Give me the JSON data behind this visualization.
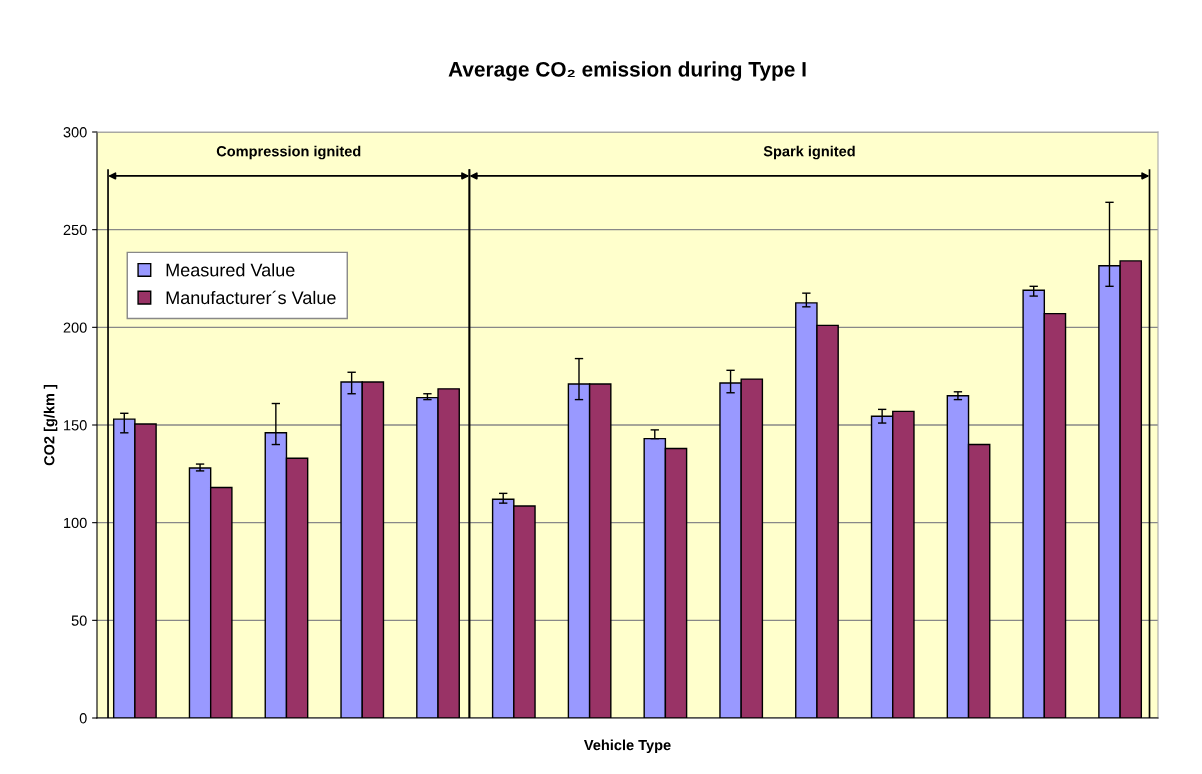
{
  "chart_data": {
    "type": "bar",
    "title": "Average CO₂ emission during Type I",
    "xlabel": "Vehicle Type",
    "ylabel": "CO2 [g/km ]",
    "categories": [
      null,
      null,
      null,
      null,
      null,
      null,
      null,
      null,
      null,
      null,
      null,
      null,
      null,
      null
    ],
    "series": [
      {
        "name": "Measured Value",
        "color": "#9999ff",
        "values": [
          153,
          128,
          146,
          172,
          164,
          112,
          171,
          143,
          171.5,
          212.5,
          154.5,
          165,
          219,
          231.5
        ],
        "errors": [
          [
            146,
            156
          ],
          [
            126.5,
            130
          ],
          [
            140,
            161
          ],
          [
            166,
            177
          ],
          [
            163,
            166
          ],
          [
            110,
            115
          ],
          [
            163,
            184
          ],
          [
            143,
            147.5
          ],
          [
            166.5,
            178
          ],
          [
            210.5,
            217.5
          ],
          [
            151,
            158
          ],
          [
            163,
            167
          ],
          [
            216,
            221
          ],
          [
            221,
            264
          ]
        ]
      },
      {
        "name": "Manufacturer´s Value",
        "color": "#993366",
        "values": [
          150.5,
          118,
          133,
          172,
          168.5,
          108.5,
          171,
          138,
          173.5,
          201,
          157,
          140,
          207,
          234
        ]
      }
    ],
    "ylim": [
      0,
      300
    ],
    "yticks": [
      0,
      50,
      100,
      150,
      200,
      250,
      300
    ],
    "grid": "y",
    "legend": "top left",
    "annotations": [
      "Compression ignited",
      "Spark ignited"
    ]
  }
}
